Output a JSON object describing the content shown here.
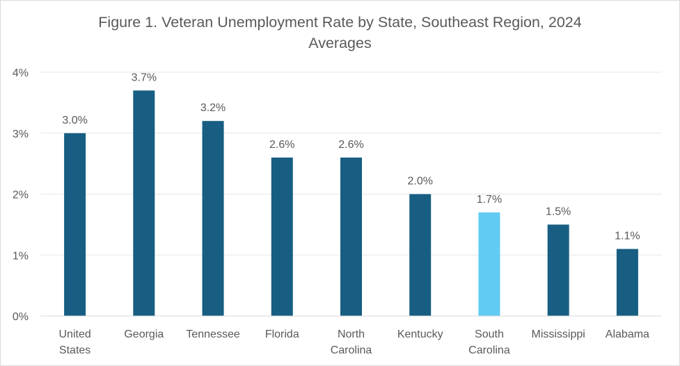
{
  "chart_data": {
    "type": "bar",
    "title_lines": [
      "Figure 1. Veteran Unemployment Rate by State, Southeast Region, 2024",
      "Averages"
    ],
    "categories": [
      [
        "United",
        "States"
      ],
      [
        "Georgia"
      ],
      [
        "Tennessee"
      ],
      [
        "Florida"
      ],
      [
        "North",
        "Carolina"
      ],
      [
        "Kentucky"
      ],
      [
        "South",
        "Carolina"
      ],
      [
        "Mississippi"
      ],
      [
        "Alabama"
      ]
    ],
    "values": [
      3.0,
      3.7,
      3.2,
      2.6,
      2.6,
      2.0,
      1.7,
      1.5,
      1.1
    ],
    "data_labels": [
      "3.0%",
      "3.7%",
      "3.2%",
      "2.6%",
      "2.6%",
      "2.0%",
      "1.7%",
      "1.5%",
      "1.1%"
    ],
    "ylim": [
      0,
      4
    ],
    "yticks": [
      0,
      1,
      2,
      3,
      4
    ],
    "ytick_labels": [
      "0%",
      "1%",
      "2%",
      "3%",
      "4%"
    ],
    "grid": true,
    "legend": "none",
    "colors": {
      "bar": "#175e82",
      "highlight": "#61cbf3",
      "grid": "#e7e7e7",
      "axis": "#d9d9d9",
      "text": "#595959"
    },
    "highlight_index": 6
  }
}
